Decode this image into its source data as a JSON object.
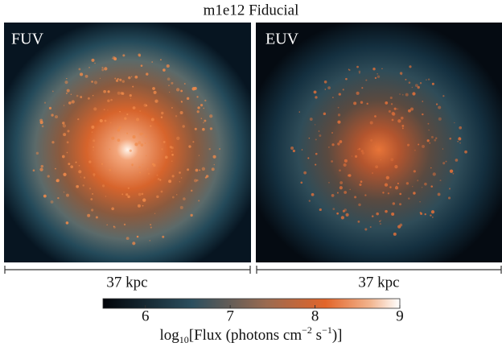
{
  "title": "m1e12 Fiducial",
  "panels": [
    {
      "label": "FUV",
      "scale_label": "37 kpc"
    },
    {
      "label": "EUV",
      "scale_label": "37 kpc"
    }
  ],
  "colorbar": {
    "label_parts": [
      "log",
      "10",
      "[Flux (photons cm",
      "−2",
      " s",
      "−1",
      ")]"
    ],
    "lim": [
      5.5,
      9
    ],
    "ticks": [
      6,
      7,
      8,
      9
    ]
  }
}
